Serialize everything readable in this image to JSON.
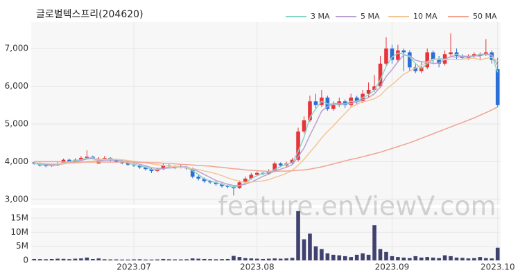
{
  "chart_data": [
    {
      "type": "candlestick",
      "title": "글로벌텍스프리(204620)",
      "watermark": "feature.enViewV.com",
      "categories": [
        null,
        null,
        null,
        null,
        null,
        null,
        null,
        null,
        null,
        null,
        null,
        null,
        null,
        null,
        null,
        null,
        null,
        "2023.07",
        null,
        null,
        null,
        null,
        null,
        null,
        null,
        null,
        null,
        null,
        null,
        null,
        null,
        null,
        null,
        null,
        null,
        null,
        null,
        null,
        "2023.08",
        null,
        null,
        null,
        null,
        null,
        null,
        null,
        null,
        null,
        null,
        null,
        null,
        null,
        null,
        null,
        null,
        null,
        null,
        null,
        null,
        null,
        null,
        "2023.09",
        null,
        null,
        null,
        null,
        null,
        null,
        null,
        null,
        null,
        null,
        null,
        null,
        null,
        null,
        null,
        null,
        null,
        "2023.10"
      ],
      "open": [
        3980,
        3950,
        3900,
        3880,
        3900,
        3950,
        4050,
        4000,
        4050,
        4100,
        4130,
        3950,
        4080,
        4100,
        4050,
        4000,
        3960,
        3920,
        3900,
        3850,
        3800,
        3750,
        3800,
        3900,
        3880,
        3850,
        3860,
        3820,
        3600,
        3550,
        3480,
        3450,
        3400,
        3350,
        3330,
        3300,
        3450,
        3550,
        3650,
        3700,
        3680,
        3750,
        3950,
        3900,
        3950,
        4050,
        4800,
        5100,
        5600,
        5500,
        5700,
        5400,
        5500,
        5600,
        5500,
        5700,
        5600,
        5800,
        5900,
        6000,
        6600,
        7000,
        6700,
        6950,
        6900,
        6500,
        6400,
        6500,
        6900,
        6700,
        6600,
        6850,
        6900,
        6800,
        6750,
        6800,
        6800,
        6850,
        6900,
        6450
      ],
      "high": [
        4000,
        3980,
        3930,
        3940,
        4000,
        4080,
        4080,
        4090,
        4150,
        4300,
        4160,
        4120,
        4150,
        4120,
        4080,
        4030,
        3990,
        3950,
        3920,
        3880,
        3830,
        3840,
        3950,
        3930,
        3900,
        3920,
        3880,
        3840,
        3640,
        3580,
        3510,
        3480,
        3430,
        3380,
        3350,
        3500,
        3600,
        3700,
        3740,
        3730,
        3800,
        4000,
        3980,
        4000,
        4100,
        4900,
        5200,
        5750,
        5800,
        5900,
        5750,
        5600,
        5700,
        5650,
        5800,
        5750,
        5900,
        6100,
        6300,
        6800,
        7300,
        7100,
        7100,
        7000,
        6950,
        6600,
        6650,
        7000,
        6950,
        6800,
        6950,
        7400,
        7000,
        6850,
        6850,
        6900,
        6900,
        7250,
        6950,
        6750
      ],
      "low": [
        3920,
        3870,
        3850,
        3860,
        3880,
        3930,
        3980,
        3980,
        4030,
        4080,
        4060,
        3940,
        4050,
        4000,
        3970,
        3930,
        3880,
        3860,
        3810,
        3760,
        3700,
        3720,
        3780,
        3840,
        3800,
        3820,
        3780,
        3560,
        3500,
        3440,
        3410,
        3360,
        3310,
        3290,
        3100,
        3280,
        3420,
        3520,
        3620,
        3640,
        3650,
        3720,
        3850,
        3860,
        3920,
        4000,
        4750,
        5050,
        5400,
        5450,
        5350,
        5350,
        5450,
        5420,
        5450,
        5500,
        5550,
        5700,
        5850,
        5950,
        6550,
        6600,
        6650,
        6400,
        6400,
        6350,
        6350,
        6450,
        6600,
        6500,
        6550,
        6800,
        6700,
        6700,
        6700,
        6750,
        6700,
        6800,
        6600,
        5450
      ],
      "close": [
        3950,
        3900,
        3880,
        3900,
        3950,
        4050,
        4000,
        4050,
        4100,
        4130,
        4100,
        4080,
        4100,
        4050,
        4000,
        3960,
        3920,
        3900,
        3850,
        3800,
        3750,
        3800,
        3900,
        3880,
        3850,
        3860,
        3820,
        3600,
        3550,
        3480,
        3450,
        3400,
        3350,
        3330,
        3300,
        3450,
        3550,
        3650,
        3700,
        3680,
        3750,
        3950,
        3900,
        3950,
        4050,
        4800,
        5100,
        5600,
        5500,
        5700,
        5400,
        5500,
        5600,
        5500,
        5700,
        5600,
        5800,
        5900,
        6000,
        6600,
        7000,
        6700,
        6950,
        6900,
        6500,
        6400,
        6500,
        6900,
        6700,
        6600,
        6850,
        6900,
        6800,
        6750,
        6800,
        6850,
        6850,
        6900,
        6700,
        5500
      ],
      "up_color": "#e8333a",
      "down_color": "#2a6fd6",
      "series": [
        {
          "name": "3 MA",
          "color": "#86d4c8",
          "values": [
            3950,
            3930,
            3910,
            3890,
            3910,
            3970,
            4000,
            4030,
            4050,
            4090,
            4110,
            4010,
            4040,
            4080,
            4050,
            4000,
            3960,
            3930,
            3890,
            3850,
            3800,
            3780,
            3820,
            3860,
            3880,
            3860,
            3840,
            3760,
            3660,
            3540,
            3490,
            3440,
            3400,
            3360,
            3330,
            3360,
            3430,
            3550,
            3630,
            3680,
            3710,
            3790,
            3870,
            3930,
            3970,
            4270,
            4650,
            5170,
            5400,
            5600,
            5530,
            5530,
            5500,
            5530,
            5600,
            5600,
            5700,
            5770,
            5900,
            6170,
            6530,
            6770,
            6880,
            6850,
            6780,
            6600,
            6470,
            6600,
            6700,
            6730,
            6720,
            6780,
            6850,
            6780,
            6780,
            6800,
            6850,
            6850,
            6820,
            6370
          ]
        },
        {
          "name": "5 MA",
          "color": "#b8a0d2",
          "values": [
            3960,
            3950,
            3930,
            3920,
            3920,
            3940,
            3960,
            3990,
            4030,
            4070,
            4080,
            4040,
            4040,
            4040,
            4040,
            4040,
            4010,
            3970,
            3930,
            3890,
            3840,
            3820,
            3820,
            3830,
            3840,
            3860,
            3860,
            3800,
            3740,
            3660,
            3580,
            3500,
            3450,
            3400,
            3370,
            3370,
            3400,
            3460,
            3530,
            3610,
            3670,
            3750,
            3800,
            3850,
            3920,
            4130,
            4360,
            4700,
            5010,
            5340,
            5460,
            5540,
            5540,
            5540,
            5540,
            5580,
            5640,
            5700,
            5800,
            5980,
            6260,
            6440,
            6650,
            6830,
            6810,
            6690,
            6650,
            6640,
            6600,
            6620,
            6710,
            6790,
            6770,
            6800,
            6790,
            6810,
            6800,
            6860,
            6830,
            6550
          ]
        },
        {
          "name": "10 MA",
          "color": "#f3c595",
          "values": [
            3970,
            3960,
            3950,
            3940,
            3940,
            3940,
            3960,
            3960,
            3980,
            4000,
            4010,
            4060,
            4060,
            4070,
            4060,
            4050,
            4030,
            4010,
            3990,
            3970,
            3940,
            3920,
            3900,
            3880,
            3870,
            3850,
            3840,
            3810,
            3790,
            3750,
            3720,
            3680,
            3630,
            3570,
            3520,
            3480,
            3450,
            3460,
            3470,
            3490,
            3520,
            3580,
            3630,
            3690,
            3770,
            3900,
            4060,
            4250,
            4430,
            4630,
            4800,
            4950,
            5120,
            5280,
            5440,
            5520,
            5590,
            5620,
            5670,
            5760,
            5920,
            6040,
            6180,
            6320,
            6400,
            6480,
            6550,
            6650,
            6720,
            6720,
            6700,
            6720,
            6710,
            6720,
            6730,
            6750,
            6700,
            6740,
            6770,
            6670
          ]
        },
        {
          "name": "50 MA",
          "color": "#f2a28e",
          "values": [
            4000,
            4000,
            4000,
            4000,
            4000,
            3990,
            3990,
            3990,
            3990,
            3990,
            3990,
            3990,
            3990,
            3990,
            3990,
            3990,
            3990,
            3990,
            3980,
            3980,
            3970,
            3970,
            3960,
            3950,
            3940,
            3930,
            3920,
            3910,
            3900,
            3890,
            3880,
            3860,
            3850,
            3830,
            3810,
            3800,
            3780,
            3770,
            3760,
            3750,
            3740,
            3740,
            3750,
            3750,
            3760,
            3770,
            3780,
            3800,
            3830,
            3860,
            3900,
            3940,
            3980,
            4020,
            4060,
            4090,
            4130,
            4170,
            4210,
            4250,
            4300,
            4350,
            4400,
            4450,
            4500,
            4560,
            4620,
            4680,
            4740,
            4800,
            4860,
            4920,
            4980,
            5040,
            5100,
            5160,
            5230,
            5300,
            5370,
            5450
          ]
        }
      ],
      "ylim": [
        2850,
        7700
      ],
      "yticks": [
        {
          "value": 3000,
          "label": "3,000"
        },
        {
          "value": 4000,
          "label": "4,000"
        },
        {
          "value": 5000,
          "label": "5,000"
        },
        {
          "value": 6000,
          "label": "6,000"
        },
        {
          "value": 7000,
          "label": "7,000"
        }
      ],
      "grid": true
    },
    {
      "type": "bar",
      "color": "#3f4270",
      "values": [
        500000,
        450000,
        400000,
        500000,
        600000,
        550000,
        450000,
        600000,
        700000,
        1000000,
        500000,
        700000,
        400000,
        350000,
        350000,
        300000,
        300000,
        350000,
        400000,
        300000,
        300000,
        350000,
        500000,
        400000,
        350000,
        350000,
        400000,
        700000,
        600000,
        500000,
        450000,
        400000,
        450000,
        500000,
        1600000,
        1200000,
        800000,
        700000,
        600000,
        500000,
        600000,
        700000,
        600000,
        700000,
        900000,
        17500000,
        7500000,
        9500000,
        5000000,
        4000000,
        2500000,
        2000000,
        1800000,
        1500000,
        1200000,
        2000000,
        2500000,
        2000000,
        12500000,
        4000000,
        3000000,
        1500000,
        1200000,
        1000000,
        800000,
        1500000,
        1000000,
        1200000,
        1000000,
        800000,
        1800000,
        1500000,
        1000000,
        900000,
        700000,
        800000,
        1200000,
        800000,
        700000,
        4500000
      ],
      "ylim": [
        0,
        18700000
      ],
      "yticks": [
        0,
        {
          "value": 5000000,
          "label": "5M"
        },
        {
          "value": 10000000,
          "label": "10M"
        },
        {
          "value": 15000000,
          "label": "15M"
        }
      ],
      "grid": true
    }
  ]
}
